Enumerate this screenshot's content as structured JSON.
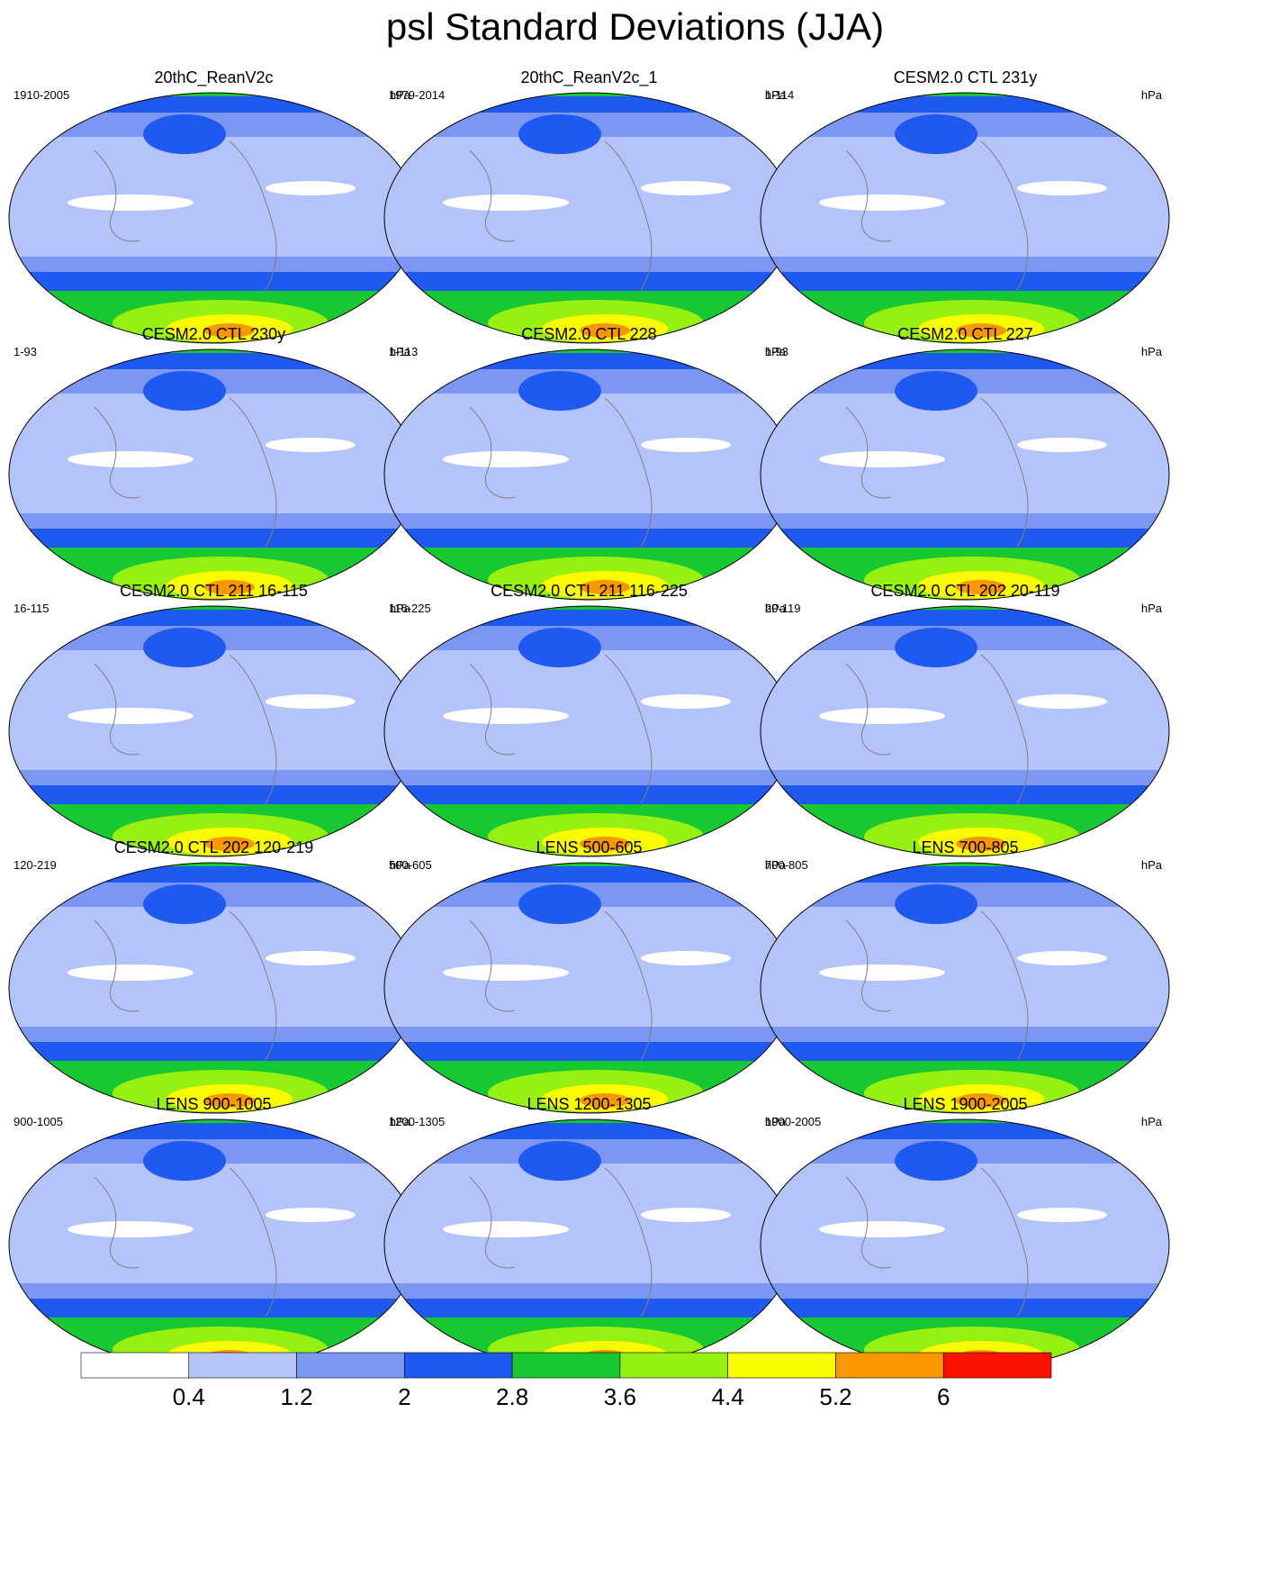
{
  "title": "psl Standard Deviations (JJA)",
  "panels": [
    {
      "title": "20thC_ReanV2c",
      "period": "1910-2005",
      "units": "hPa"
    },
    {
      "title": "20thC_ReanV2c_1",
      "period": "1979-2014",
      "units": "hPa"
    },
    {
      "title": "CESM2.0 CTL 231y",
      "period": "1-114",
      "units": "hPa"
    },
    {
      "title": "CESM2.0 CTL 230y",
      "period": "1-93",
      "units": "hPa"
    },
    {
      "title": "CESM2.0 CTL 228",
      "period": "1-113",
      "units": "hPa"
    },
    {
      "title": "CESM2.0 CTL 227",
      "period": "1-93",
      "units": "hPa"
    },
    {
      "title": "CESM2.0 CTL 211 16-115",
      "period": "16-115",
      "units": "hPa"
    },
    {
      "title": "CESM2.0 CTL 211 116-225",
      "period": "116-225",
      "units": "hPa"
    },
    {
      "title": "CESM2.0 CTL 202 20-119",
      "period": "20-119",
      "units": "hPa"
    },
    {
      "title": "CESM2.0 CTL 202 120-219",
      "period": "120-219",
      "units": "hPa"
    },
    {
      "title": "LENS 500-605",
      "period": "500-605",
      "units": "hPa"
    },
    {
      "title": "LENS 700-805",
      "period": "700-805",
      "units": "hPa"
    },
    {
      "title": "LENS 900-1005",
      "period": "900-1005",
      "units": "hPa"
    },
    {
      "title": "LENS 1200-1305",
      "period": "1200-1305",
      "units": "hPa"
    },
    {
      "title": "LENS 1900-2005",
      "period": "1900-2005",
      "units": "hPa"
    }
  ],
  "colorbar": {
    "labels": [
      "0.4",
      "1.2",
      "2",
      "2.8",
      "3.6",
      "4.4",
      "5.2",
      "6"
    ],
    "colors": [
      "#ffffff",
      "#b4c4fa",
      "#7c96f4",
      "#1e5af0",
      "#18c832",
      "#96f012",
      "#fafa00",
      "#fa9600",
      "#fa1400"
    ]
  }
}
